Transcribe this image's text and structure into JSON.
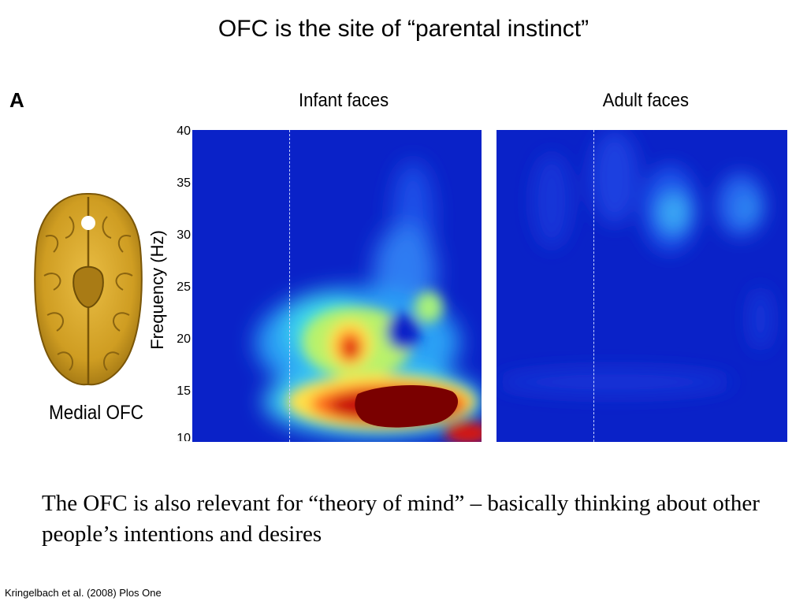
{
  "slide": {
    "title": "OFC is the site of “parental instinct”",
    "body": "The OFC is also relevant for “theory of mind” – basically thinking about other people’s intentions and desires",
    "citation": "Kringelbach et al. (2008) Plos One"
  },
  "figure": {
    "panel_letter": "A",
    "brain_label": "Medial OFC",
    "y_axis_label": "Frequency (Hz)",
    "y_ticks": [
      "40",
      "35",
      "30",
      "25",
      "20",
      "15",
      "10"
    ],
    "panels": [
      {
        "title": "Infant faces"
      },
      {
        "title": "Adult faces"
      }
    ],
    "colors": {
      "low": "#0a22c8",
      "high": "#8b0000",
      "brain": "#d4a62a"
    }
  }
}
